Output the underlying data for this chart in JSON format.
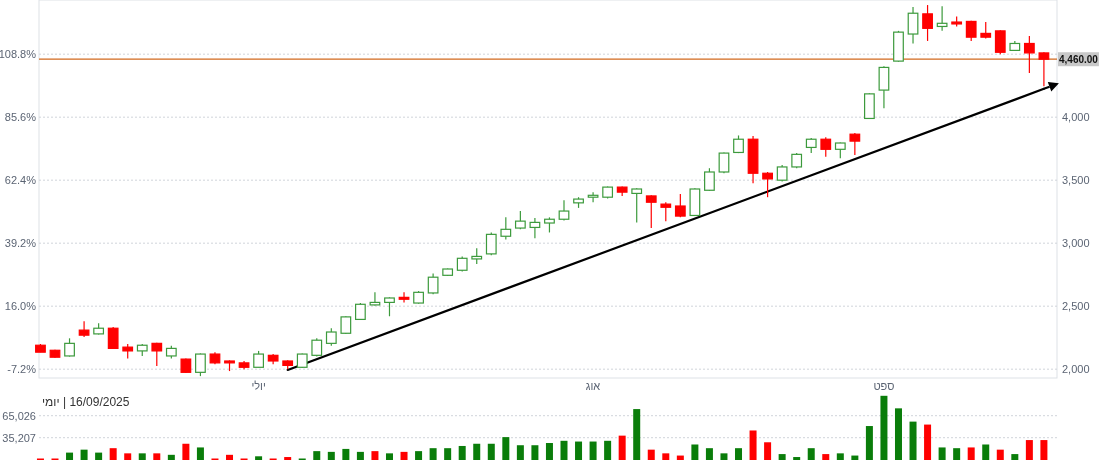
{
  "chart_data": [
    {
      "type": "candlestick",
      "title": "יומי | 16/09/2025",
      "categories": [
        null,
        null,
        null,
        null,
        null,
        null,
        null,
        null,
        null,
        null,
        null,
        null,
        null,
        null,
        null,
        "יולי",
        null,
        null,
        null,
        null,
        null,
        null,
        null,
        null,
        null,
        null,
        null,
        null,
        null,
        null,
        null,
        null,
        null,
        null,
        null,
        null,
        null,
        null,
        "אוג",
        null,
        null,
        null,
        null,
        null,
        null,
        null,
        null,
        null,
        null,
        null,
        null,
        null,
        null,
        null,
        null,
        null,
        null,
        null,
        "ספט",
        null,
        null,
        null,
        null,
        null,
        null,
        null,
        null,
        null,
        null,
        null
      ],
      "series": [
        {
          "type": "line",
          "axis": "y2",
          "color": "#000000",
          "values": [
            null,
            null,
            null,
            null,
            null,
            null,
            null,
            null,
            null,
            null,
            null,
            null,
            null,
            null,
            null,
            null,
            null,
            1994,
            null,
            null,
            null,
            null,
            null,
            null,
            null,
            null,
            null,
            null,
            null,
            null,
            null,
            null,
            null,
            null,
            null,
            null,
            null,
            null,
            null,
            null,
            null,
            null,
            null,
            null,
            null,
            null,
            null,
            null,
            null,
            null,
            null,
            null,
            null,
            null,
            null,
            null,
            null,
            null,
            null,
            null,
            null,
            null,
            null,
            null,
            null,
            null,
            null,
            null,
            null,
            4225
          ]
        },
        {
          "type": "candlestick",
          "axis": "y2",
          "ohlc": [
            [
              2190,
              2200,
              2135,
              2135
            ],
            [
              2150,
              2155,
              2090,
              2095
            ],
            [
              2105,
              2245,
              2100,
              2205
            ],
            [
              2310,
              2380,
              2255,
              2270
            ],
            [
              2280,
              2365,
              2275,
              2325
            ],
            [
              2325,
              2335,
              2160,
              2165
            ],
            [
              2175,
              2200,
              2085,
              2145
            ],
            [
              2145,
              2200,
              2105,
              2190
            ],
            [
              2205,
              2210,
              2025,
              2145
            ],
            [
              2105,
              2185,
              2085,
              2165
            ],
            [
              2080,
              2085,
              1970,
              1975
            ],
            [
              1975,
              2125,
              1945,
              2120
            ],
            [
              2120,
              2135,
              2040,
              2050
            ],
            [
              2065,
              2070,
              1985,
              2050
            ],
            [
              2050,
              2065,
              2000,
              2015
            ],
            [
              2015,
              2145,
              2015,
              2120
            ],
            [
              2110,
              2120,
              2040,
              2065
            ],
            [
              2065,
              2070,
              2000,
              2030
            ],
            [
              2015,
              2125,
              2010,
              2120
            ],
            [
              2110,
              2245,
              2100,
              2230
            ],
            [
              2205,
              2325,
              2185,
              2295
            ],
            [
              2285,
              2420,
              2280,
              2415
            ],
            [
              2395,
              2525,
              2390,
              2515
            ],
            [
              2510,
              2610,
              2505,
              2530
            ],
            [
              2530,
              2570,
              2420,
              2565
            ],
            [
              2570,
              2610,
              2530,
              2555
            ],
            [
              2525,
              2620,
              2520,
              2610
            ],
            [
              2605,
              2760,
              2595,
              2730
            ],
            [
              2745,
              2800,
              2740,
              2795
            ],
            [
              2785,
              2895,
              2775,
              2880
            ],
            [
              2875,
              2960,
              2835,
              2895
            ],
            [
              2915,
              3085,
              2905,
              3070
            ],
            [
              3055,
              3205,
              3030,
              3110
            ],
            [
              3120,
              3255,
              3110,
              3175
            ],
            [
              3125,
              3200,
              3040,
              3165
            ],
            [
              3160,
              3205,
              3085,
              3190
            ],
            [
              3190,
              3340,
              3180,
              3255
            ],
            [
              3320,
              3365,
              3280,
              3350
            ],
            [
              3365,
              3405,
              3325,
              3380
            ],
            [
              3365,
              3450,
              3355,
              3445
            ],
            [
              3445,
              3450,
              3375,
              3405
            ],
            [
              3395,
              3435,
              3165,
              3430
            ],
            [
              3375,
              3380,
              3120,
              3325
            ],
            [
              3310,
              3325,
              3175,
              3285
            ],
            [
              3295,
              3390,
              3205,
              3215
            ],
            [
              3220,
              3435,
              3215,
              3430
            ],
            [
              3420,
              3595,
              3415,
              3565
            ],
            [
              3565,
              3720,
              3555,
              3715
            ],
            [
              3720,
              3855,
              3715,
              3825
            ],
            [
              3825,
              3850,
              3475,
              3555
            ],
            [
              3555,
              3565,
              3365,
              3510
            ],
            [
              3500,
              3620,
              3490,
              3605
            ],
            [
              3605,
              3715,
              3595,
              3705
            ],
            [
              3760,
              3835,
              3715,
              3825
            ],
            [
              3825,
              3840,
              3685,
              3745
            ],
            [
              3745,
              3800,
              3675,
              3795
            ],
            [
              3865,
              3875,
              3700,
              3810
            ],
            [
              3990,
              4190,
              3985,
              4185
            ],
            [
              4215,
              4405,
              4070,
              4395
            ],
            [
              4445,
              4685,
              4440,
              4675
            ],
            [
              4660,
              4875,
              4585,
              4825
            ],
            [
              4820,
              4890,
              4605,
              4705
            ],
            [
              4720,
              4880,
              4685,
              4745
            ],
            [
              4755,
              4800,
              4720,
              4740
            ],
            [
              4760,
              4765,
              4605,
              4635
            ],
            [
              4665,
              4755,
              4625,
              4635
            ],
            [
              4685,
              4690,
              4500,
              4515
            ],
            [
              4530,
              4605,
              4525,
              4585
            ],
            [
              4585,
              4645,
              4350,
              4510
            ],
            [
              4510,
              4515,
              4245,
              4460
            ]
          ],
          "colors": [
            "#ff0000",
            "#ff0000",
            "#3c9a3c",
            "#ff0000",
            "#3c9a3c",
            "#ff0000",
            "#ff0000",
            "#3c9a3c",
            "#ff0000",
            "#3c9a3c",
            "#ff0000",
            "#3c9a3c",
            "#ff0000",
            "#ff0000",
            "#ff0000",
            "#3c9a3c",
            "#ff0000",
            "#ff0000",
            "#3c9a3c",
            "#3c9a3c",
            "#3c9a3c",
            "#3c9a3c",
            "#3c9a3c",
            "#3c9a3c",
            "#3c9a3c",
            "#ff0000",
            "#3c9a3c",
            "#3c9a3c",
            "#3c9a3c",
            "#3c9a3c",
            "#3c9a3c",
            "#3c9a3c",
            "#3c9a3c",
            "#3c9a3c",
            "#3c9a3c",
            "#3c9a3c",
            "#3c9a3c",
            "#3c9a3c",
            "#3c9a3c",
            "#3c9a3c",
            "#ff0000",
            "#3c9a3c",
            "#ff0000",
            "#ff0000",
            "#ff0000",
            "#3c9a3c",
            "#3c9a3c",
            "#3c9a3c",
            "#3c9a3c",
            "#ff0000",
            "#ff0000",
            "#3c9a3c",
            "#3c9a3c",
            "#3c9a3c",
            "#ff0000",
            "#3c9a3c",
            "#ff0000",
            "#3c9a3c",
            "#3c9a3c",
            "#3c9a3c",
            "#3c9a3c",
            "#ff0000",
            "#3c9a3c",
            "#ff0000",
            "#ff0000",
            "#ff0000",
            "#ff0000",
            "#3c9a3c",
            "#ff0000",
            "#ff0000"
          ]
        }
      ],
      "ylim": [
        -10.45,
        128.75
      ],
      "yticks": [
        {
          "value": -7.2,
          "label": "-7.2%"
        },
        {
          "value": 16,
          "label": "16.0%"
        },
        {
          "value": 39.2,
          "label": "39.2%"
        },
        {
          "value": 62.4,
          "label": "62.4%"
        },
        {
          "value": 85.6,
          "label": "85.6%"
        },
        {
          "value": 108.8,
          "label": "108.8%"
        }
      ],
      "y2lim": [
        1930,
        4930
      ],
      "y2ticks": [
        {
          "value": 2000,
          "label": "2,000"
        },
        {
          "value": 2500,
          "label": "2,500"
        },
        {
          "value": 3000,
          "label": "3,000"
        },
        {
          "value": 3500,
          "label": "3,500"
        },
        {
          "value": 4000,
          "label": "4,000"
        },
        {
          "value": 4500,
          "label": null
        }
      ],
      "ref_lines": [
        {
          "axis": "y2",
          "value": 4460,
          "label": "4,460.00",
          "color": "#d2691e"
        }
      ],
      "grid": "y"
    },
    {
      "type": "bar",
      "categories": [
        null,
        null,
        null,
        null,
        null,
        null,
        null,
        null,
        null,
        null,
        null,
        null,
        null,
        null,
        null,
        null,
        null,
        null,
        null,
        null,
        null,
        null,
        null,
        null,
        null,
        null,
        null,
        null,
        null,
        null,
        null,
        null,
        null,
        null,
        null,
        null,
        null,
        null,
        null,
        null,
        null,
        null,
        null,
        null,
        null,
        null,
        null,
        null,
        null,
        null,
        null,
        null,
        null,
        null,
        null,
        null,
        null,
        null,
        null,
        null,
        null,
        null,
        null,
        null,
        null,
        null,
        null,
        null,
        null,
        null
      ],
      "values": [
        7000,
        7000,
        15000,
        19000,
        15000,
        21000,
        14000,
        14000,
        14000,
        12000,
        27000,
        22000,
        7000,
        12000,
        7000,
        10000,
        7000,
        9000,
        7000,
        17000,
        16000,
        20000,
        16000,
        17000,
        14000,
        16000,
        17000,
        21000,
        21000,
        24000,
        27000,
        27000,
        36000,
        25000,
        25000,
        28000,
        31000,
        30000,
        30000,
        31000,
        38000,
        74000,
        19000,
        14000,
        11000,
        26000,
        21000,
        14000,
        21000,
        45000,
        29000,
        13000,
        9000,
        21000,
        13000,
        14000,
        11000,
        51000,
        92000,
        75000,
        57000,
        53000,
        22000,
        21000,
        22000,
        26000,
        19000,
        13000,
        32000,
        32000
      ],
      "colors": [
        "#ff0000",
        "#ff0000",
        "#0a7d0a",
        "#0a7d0a",
        "#0a7d0a",
        "#ff0000",
        "#ff0000",
        "#0a7d0a",
        "#ff0000",
        "#0a7d0a",
        "#ff0000",
        "#0a7d0a",
        "#ff0000",
        "#ff0000",
        "#ff0000",
        "#0a7d0a",
        "#ff0000",
        "#ff0000",
        "#0a7d0a",
        "#0a7d0a",
        "#0a7d0a",
        "#0a7d0a",
        "#0a7d0a",
        "#ff0000",
        "#0a7d0a",
        "#ff0000",
        "#0a7d0a",
        "#0a7d0a",
        "#0a7d0a",
        "#0a7d0a",
        "#0a7d0a",
        "#0a7d0a",
        "#0a7d0a",
        "#0a7d0a",
        "#0a7d0a",
        "#0a7d0a",
        "#0a7d0a",
        "#0a7d0a",
        "#0a7d0a",
        "#0a7d0a",
        "#ff0000",
        "#0a7d0a",
        "#ff0000",
        "#ff0000",
        "#ff0000",
        "#0a7d0a",
        "#0a7d0a",
        "#0a7d0a",
        "#0a7d0a",
        "#ff0000",
        "#ff0000",
        "#0a7d0a",
        "#0a7d0a",
        "#0a7d0a",
        "#ff0000",
        "#0a7d0a",
        "#0a7d0a",
        "#0a7d0a",
        "#0a7d0a",
        "#0a7d0a",
        "#0a7d0a",
        "#ff0000",
        "#0a7d0a",
        "#0a7d0a",
        "#ff0000",
        "#0a7d0a",
        "#ff0000",
        "#0a7d0a",
        "#ff0000",
        "#ff0000"
      ],
      "ylim": [
        4980,
        94440
      ],
      "yticks": [
        {
          "value": 35207,
          "label": "35,207"
        },
        {
          "value": 65026,
          "label": "65,026"
        }
      ],
      "grid": "y",
      "tick_labels": "y"
    }
  ]
}
